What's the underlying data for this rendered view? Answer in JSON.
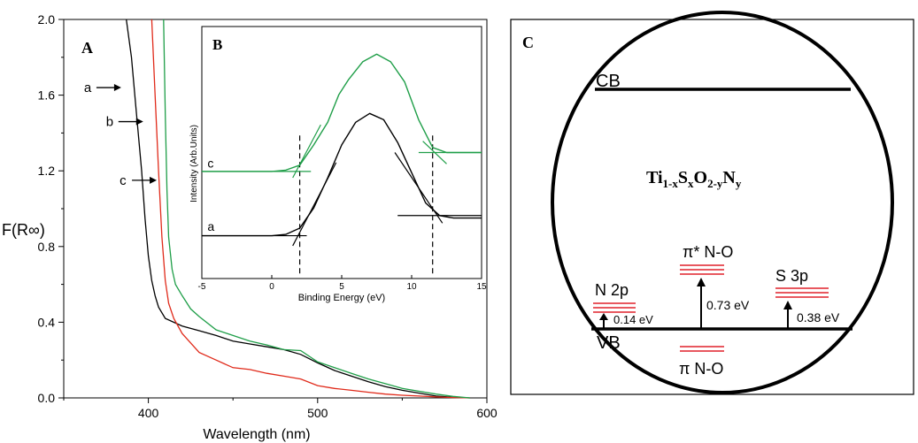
{
  "panels": {
    "A": {
      "label": "A"
    },
    "B": {
      "label": "B"
    },
    "C": {
      "label": "C"
    }
  },
  "chart_data": [
    {
      "type": "line",
      "panel": "A",
      "xlabel": "Wavelength (nm)",
      "ylabel": "F(R∞)",
      "xlim": [
        350,
        600
      ],
      "ylim": [
        0,
        2.0
      ],
      "xticks": [
        400,
        500,
        600
      ],
      "yticks": [
        0.0,
        0.4,
        0.8,
        1.2,
        1.6,
        2.0
      ],
      "ytick_labels": [
        "0.0",
        "0.4",
        "0.8",
        "1.2",
        "1.6",
        "2.0"
      ],
      "series": [
        {
          "name": "a",
          "color": "#000000",
          "x": [
            387,
            390,
            393,
            396,
            398,
            400,
            402,
            404,
            406,
            410,
            420,
            430,
            440,
            450,
            460,
            470,
            480,
            490,
            500,
            510,
            520,
            530,
            540,
            550,
            560,
            570,
            580,
            590
          ],
          "y": [
            2.0,
            1.8,
            1.5,
            1.2,
            0.95,
            0.75,
            0.62,
            0.54,
            0.48,
            0.42,
            0.38,
            0.355,
            0.33,
            0.3,
            0.285,
            0.27,
            0.255,
            0.23,
            0.185,
            0.145,
            0.115,
            0.085,
            0.06,
            0.04,
            0.025,
            0.01,
            0.003,
            0.0
          ]
        },
        {
          "name": "b",
          "color": "#e02a1a",
          "x": [
            402,
            404,
            406,
            408,
            410,
            412,
            415,
            420,
            430,
            440,
            450,
            460,
            470,
            480,
            490,
            500,
            510,
            520,
            530,
            540,
            550,
            560,
            570,
            580,
            590
          ],
          "y": [
            2.0,
            1.6,
            1.2,
            0.85,
            0.62,
            0.5,
            0.42,
            0.34,
            0.24,
            0.2,
            0.16,
            0.15,
            0.13,
            0.115,
            0.1,
            0.065,
            0.05,
            0.04,
            0.03,
            0.02,
            0.014,
            0.01,
            0.005,
            0.002,
            0.0
          ]
        },
        {
          "name": "c",
          "color": "#1f9e48",
          "x": [
            409,
            410,
            411,
            412,
            414,
            416,
            420,
            425,
            430,
            440,
            450,
            460,
            470,
            480,
            490,
            500,
            510,
            520,
            530,
            540,
            550,
            560,
            570,
            580,
            590
          ],
          "y": [
            2.0,
            1.5,
            1.1,
            0.85,
            0.68,
            0.6,
            0.54,
            0.47,
            0.43,
            0.36,
            0.33,
            0.3,
            0.28,
            0.255,
            0.25,
            0.19,
            0.16,
            0.13,
            0.1,
            0.075,
            0.05,
            0.035,
            0.02,
            0.008,
            0.0
          ]
        }
      ],
      "annotations": [
        {
          "label": "a",
          "x_nm": 385,
          "y": 1.64
        },
        {
          "label": "b",
          "x_nm": 398,
          "y": 1.46
        },
        {
          "label": "c",
          "x_nm": 406,
          "y": 1.15
        }
      ]
    },
    {
      "type": "line",
      "panel": "B",
      "xlabel": "Binding Energy (eV)",
      "ylabel": "Intensity (Arb.Units)",
      "xlim": [
        -5,
        15
      ],
      "ylim": [
        0,
        1
      ],
      "xticks": [
        -5,
        0,
        5,
        10,
        15
      ],
      "series": [
        {
          "name": "a",
          "color": "#000000",
          "x": [
            -5,
            0,
            1,
            2,
            3,
            4,
            5,
            6,
            7,
            8,
            9,
            10,
            11,
            12,
            13,
            15
          ],
          "y": [
            0.17,
            0.17,
            0.175,
            0.2,
            0.28,
            0.4,
            0.53,
            0.62,
            0.655,
            0.63,
            0.54,
            0.42,
            0.3,
            0.25,
            0.24,
            0.24
          ]
        },
        {
          "name": "c",
          "color": "#1f9e48",
          "x": [
            -5,
            0,
            1,
            2,
            3,
            4,
            4.8,
            5.5,
            6.5,
            7.5,
            8.5,
            9.5,
            10.5,
            11.5,
            12.5,
            15
          ],
          "y": [
            0.425,
            0.425,
            0.43,
            0.45,
            0.53,
            0.62,
            0.73,
            0.79,
            0.86,
            0.89,
            0.86,
            0.78,
            0.63,
            0.52,
            0.5,
            0.5
          ]
        }
      ],
      "tangent_lines": [
        {
          "color": "#000000",
          "x": [
            -5,
            2.5
          ],
          "y": [
            0.17,
            0.17
          ]
        },
        {
          "color": "#000000",
          "x": [
            1.5,
            4.6
          ],
          "y": [
            0.13,
            0.46
          ]
        },
        {
          "color": "#000000",
          "x": [
            9,
            15
          ],
          "y": [
            0.25,
            0.25
          ]
        },
        {
          "color": "#000000",
          "x": [
            8.8,
            12.2
          ],
          "y": [
            0.5,
            0.22
          ]
        },
        {
          "color": "#1f9e48",
          "x": [
            -5,
            2.8
          ],
          "y": [
            0.425,
            0.425
          ]
        },
        {
          "color": "#1f9e48",
          "x": [
            1.5,
            3.5
          ],
          "y": [
            0.4,
            0.61
          ]
        },
        {
          "color": "#1f9e48",
          "x": [
            10.5,
            15
          ],
          "y": [
            0.5,
            0.5
          ]
        },
        {
          "color": "#1f9e48",
          "x": [
            10.8,
            12.5
          ],
          "y": [
            0.545,
            0.455
          ]
        }
      ],
      "dashed_lines": [
        {
          "x": 2.0
        },
        {
          "x": 11.5
        }
      ],
      "annotations": [
        {
          "label": "c",
          "x": -4.6,
          "y": 0.44
        },
        {
          "label": "a",
          "x": -4.6,
          "y": 0.19
        }
      ]
    }
  ],
  "diagram": {
    "cb_label": "CB",
    "vb_label": "VB",
    "formula": {
      "base": "Ti",
      "sub1": "1-x",
      "el2": "S",
      "sub2": "x",
      "el3": "O",
      "sub3": "2-y",
      "el4": "N",
      "sub4": "y"
    },
    "levels": [
      {
        "name": "N 2p",
        "energy": "0.14 eV"
      },
      {
        "name": "π* N-O",
        "energy": "0.73 eV"
      },
      {
        "name": "S 3p",
        "energy": "0.38 eV"
      }
    ],
    "below_vb_label": "π N-O",
    "level_color": "#e0202a"
  }
}
